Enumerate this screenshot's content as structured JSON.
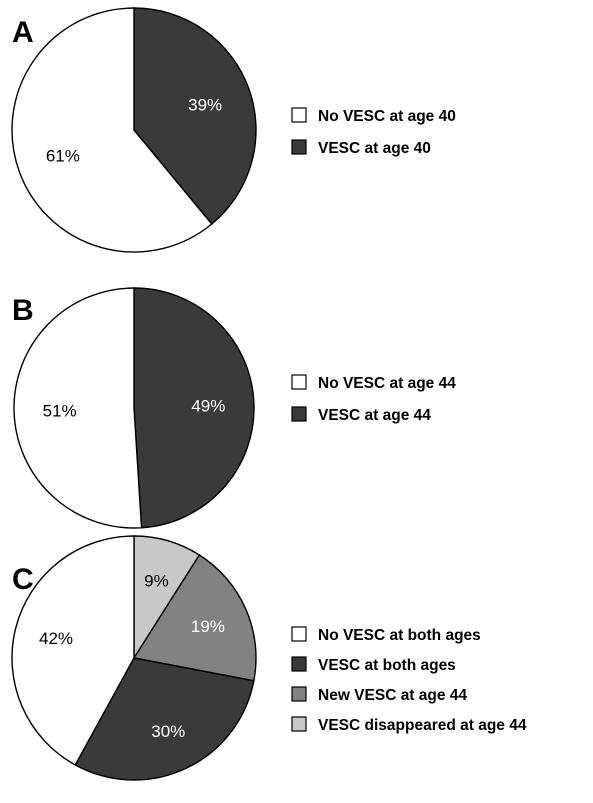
{
  "chart_data": [
    {
      "type": "pie",
      "panel": "A",
      "start": "top",
      "direction": "clockwise",
      "slices": [
        {
          "label": "VESC at age 40",
          "value": 39,
          "text": "39%",
          "color": "#3a3a3a",
          "text_color": "#ffffff"
        },
        {
          "label": "No VESC at age 40",
          "value": 61,
          "text": "61%",
          "color": "#ffffff",
          "text_color": "#000000"
        }
      ],
      "legend": [
        {
          "label": "No VESC at age 40",
          "color": "#ffffff"
        },
        {
          "label": "VESC at age 40",
          "color": "#3a3a3a"
        }
      ]
    },
    {
      "type": "pie",
      "panel": "B",
      "start": "top",
      "direction": "clockwise",
      "slices": [
        {
          "label": "VESC at age 44",
          "value": 49,
          "text": "49%",
          "color": "#3a3a3a",
          "text_color": "#ffffff"
        },
        {
          "label": "No VESC at age 44",
          "value": 51,
          "text": "51%",
          "color": "#ffffff",
          "text_color": "#000000"
        }
      ],
      "legend": [
        {
          "label": "No VESC at age 44",
          "color": "#ffffff"
        },
        {
          "label": "VESC at age 44",
          "color": "#3a3a3a"
        }
      ]
    },
    {
      "type": "pie",
      "panel": "C",
      "start": "top",
      "direction": "clockwise",
      "slices": [
        {
          "label": "VESC disappeared at age 44",
          "value": 9,
          "text": "9%",
          "color": "#c8c8c8",
          "text_color": "#000000"
        },
        {
          "label": "New VESC at age 44",
          "value": 19,
          "text": "19%",
          "color": "#828282",
          "text_color": "#ffffff"
        },
        {
          "label": "VESC at both ages",
          "value": 30,
          "text": "30%",
          "color": "#3a3a3a",
          "text_color": "#ffffff"
        },
        {
          "label": "No VESC at both ages",
          "value": 42,
          "text": "42%",
          "color": "#ffffff",
          "text_color": "#000000"
        }
      ],
      "legend": [
        {
          "label": "No VESC at both ages",
          "color": "#ffffff"
        },
        {
          "label": "VESC at both ages",
          "color": "#3a3a3a"
        },
        {
          "label": "New VESC at age 44",
          "color": "#828282"
        },
        {
          "label": "VESC disappeared at age 44",
          "color": "#c8c8c8"
        }
      ]
    }
  ]
}
